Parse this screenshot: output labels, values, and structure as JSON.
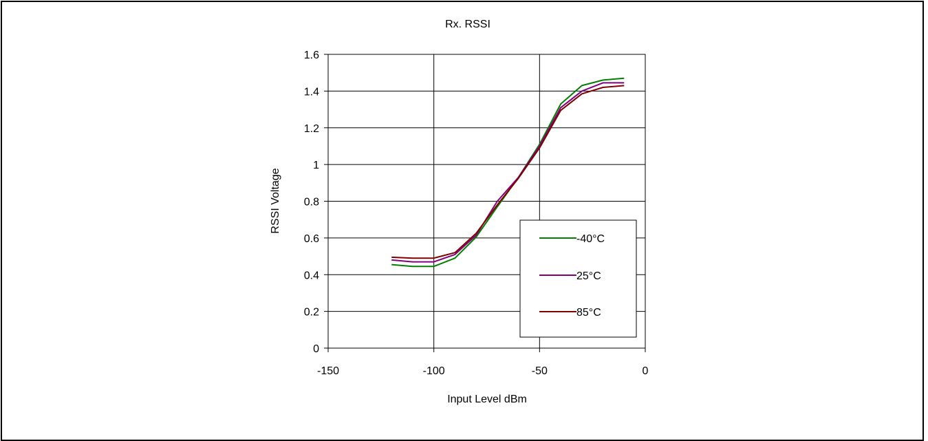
{
  "chart_data": {
    "type": "line",
    "title": "Rx. RSSI",
    "xlabel": "Input Level dBm",
    "ylabel": "RSSI Voltage",
    "xlim": [
      -150,
      0
    ],
    "ylim": [
      0,
      1.6
    ],
    "x_ticks": [
      -150,
      -100,
      -50,
      0
    ],
    "y_ticks": [
      0,
      0.2,
      0.4,
      0.6,
      0.8,
      1,
      1.2,
      1.4,
      1.6
    ],
    "x_tick_labels": [
      "-150",
      "-100",
      "-50",
      "0"
    ],
    "y_tick_labels": [
      "0",
      "0.2",
      "0.4",
      "0.6",
      "0.8",
      "1",
      "1.2",
      "1.4",
      "1.6"
    ],
    "grid": "both",
    "legend": "lower-right, inside plot",
    "x": [
      -120,
      -110,
      -100,
      -90,
      -80,
      -70,
      -60,
      -50,
      -40,
      -30,
      -20,
      -10
    ],
    "series": [
      {
        "name": "-40°C",
        "color": "#008000",
        "values": [
          0.455,
          0.445,
          0.445,
          0.49,
          0.605,
          0.77,
          0.93,
          1.11,
          1.33,
          1.43,
          1.46,
          1.47
        ]
      },
      {
        "name": "25°C",
        "color": "#800080",
        "values": [
          0.48,
          0.47,
          0.47,
          0.51,
          0.615,
          0.8,
          0.93,
          1.1,
          1.31,
          1.4,
          1.445,
          1.445
        ]
      },
      {
        "name": "85°C",
        "color": "#800000",
        "values": [
          0.495,
          0.49,
          0.49,
          0.52,
          0.625,
          0.78,
          0.925,
          1.09,
          1.295,
          1.385,
          1.42,
          1.43
        ]
      }
    ]
  }
}
